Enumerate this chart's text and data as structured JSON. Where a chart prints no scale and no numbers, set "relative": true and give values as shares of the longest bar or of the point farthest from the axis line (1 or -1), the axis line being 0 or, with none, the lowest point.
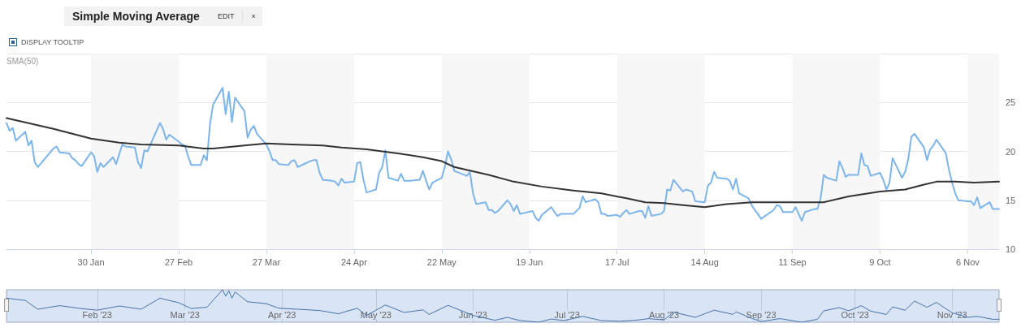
{
  "chart_data": [
    {
      "type": "line",
      "title": "Simple Moving Average",
      "annotations": [
        "EDIT",
        "×",
        "DISPLAY TOOLTIP"
      ],
      "xlim": [
        "2023-01-03",
        "2023-11-16"
      ],
      "xticks": [
        {
          "value": "2023-01-30",
          "label": "30 Jan"
        },
        {
          "value": "2023-02-27",
          "label": "27 Feb"
        },
        {
          "value": "2023-03-27",
          "label": "27 Mar"
        },
        {
          "value": "2023-04-24",
          "label": "24 Apr"
        },
        {
          "value": "2023-05-22",
          "label": "22 May"
        },
        {
          "value": "2023-06-19",
          "label": "19 Jun"
        },
        {
          "value": "2023-07-17",
          "label": "17 Jul"
        },
        {
          "value": "2023-08-14",
          "label": "14 Aug"
        },
        {
          "value": "2023-09-11",
          "label": "11 Sep"
        },
        {
          "value": "2023-10-09",
          "label": "9 Oct"
        },
        {
          "value": "2023-11-06",
          "label": "6 Nov"
        }
      ],
      "ylim": [
        10,
        30
      ],
      "yticks": [
        10,
        15,
        20,
        25,
        {
          "value": 30,
          "label": null
        }
      ],
      "grid": "y",
      "marker": "none",
      "line_style": "solid",
      "bands": [
        {
          "axis": "x",
          "from": "2023-01-30",
          "to": "2023-02-27",
          "color": "#f7f7f7"
        },
        {
          "axis": "x",
          "from": "2023-03-27",
          "to": "2023-04-24",
          "color": "#f7f7f7"
        },
        {
          "axis": "x",
          "from": "2023-05-22",
          "to": "2023-06-19",
          "color": "#f7f7f7"
        },
        {
          "axis": "x",
          "from": "2023-07-17",
          "to": "2023-08-14",
          "color": "#f7f7f7"
        },
        {
          "axis": "x",
          "from": "2023-09-11",
          "to": "2023-10-09",
          "color": "#f7f7f7"
        },
        {
          "axis": "x",
          "from": "2023-11-06",
          "to": "2023-11-16",
          "color": "#f7f7f7"
        }
      ],
      "series": [
        {
          "color": "#7cb5ec",
          "x": [
            "2023-01-03",
            "2023-01-04",
            "2023-01-05",
            "2023-01-06",
            "2023-01-09",
            "2023-01-10",
            "2023-01-11",
            "2023-01-12",
            "2023-01-13",
            "2023-01-18",
            "2023-01-19",
            "2023-01-20",
            "2023-01-23",
            "2023-01-24",
            "2023-01-25",
            "2023-01-26",
            "2023-01-27",
            "2023-01-30",
            "2023-01-31",
            "2023-02-01",
            "2023-02-02",
            "2023-02-03",
            "2023-02-06",
            "2023-02-07",
            "2023-02-08",
            "2023-02-09",
            "2023-02-10",
            "2023-02-13",
            "2023-02-14",
            "2023-02-15",
            "2023-02-16",
            "2023-02-17",
            "2023-02-21",
            "2023-02-22",
            "2023-02-23",
            "2023-02-24",
            "2023-02-27",
            "2023-02-28",
            "2023-03-01",
            "2023-03-02",
            "2023-03-03",
            "2023-03-06",
            "2023-03-07",
            "2023-03-08",
            "2023-03-09",
            "2023-03-10",
            "2023-03-13",
            "2023-03-14",
            "2023-03-15",
            "2023-03-16",
            "2023-03-17",
            "2023-03-20",
            "2023-03-21",
            "2023-03-22",
            "2023-03-23",
            "2023-03-24",
            "2023-03-27",
            "2023-03-28",
            "2023-03-29",
            "2023-03-30",
            "2023-03-31",
            "2023-04-03",
            "2023-04-04",
            "2023-04-05",
            "2023-04-06",
            "2023-04-10",
            "2023-04-11",
            "2023-04-12",
            "2023-04-13",
            "2023-04-14",
            "2023-04-17",
            "2023-04-18",
            "2023-04-19",
            "2023-04-20",
            "2023-04-21",
            "2023-04-24",
            "2023-04-25",
            "2023-04-26",
            "2023-04-27",
            "2023-04-28",
            "2023-05-01",
            "2023-05-02",
            "2023-05-03",
            "2023-05-04",
            "2023-05-05",
            "2023-05-08",
            "2023-05-09",
            "2023-05-10",
            "2023-05-11",
            "2023-05-12",
            "2023-05-15",
            "2023-05-16",
            "2023-05-17",
            "2023-05-18",
            "2023-05-19",
            "2023-05-22",
            "2023-05-23",
            "2023-05-24",
            "2023-05-25",
            "2023-05-26",
            "2023-05-30",
            "2023-05-31",
            "2023-06-01",
            "2023-06-02",
            "2023-06-05",
            "2023-06-06",
            "2023-06-07",
            "2023-06-08",
            "2023-06-09",
            "2023-06-12",
            "2023-06-13",
            "2023-06-14",
            "2023-06-15",
            "2023-06-16",
            "2023-06-20",
            "2023-06-21",
            "2023-06-22",
            "2023-06-23",
            "2023-06-26",
            "2023-06-27",
            "2023-06-28",
            "2023-06-29",
            "2023-06-30",
            "2023-07-03",
            "2023-07-05",
            "2023-07-06",
            "2023-07-07",
            "2023-07-10",
            "2023-07-11",
            "2023-07-12",
            "2023-07-13",
            "2023-07-14",
            "2023-07-17",
            "2023-07-18",
            "2023-07-19",
            "2023-07-20",
            "2023-07-21",
            "2023-07-24",
            "2023-07-25",
            "2023-07-26",
            "2023-07-27",
            "2023-07-28",
            "2023-07-31",
            "2023-08-01",
            "2023-08-02",
            "2023-08-03",
            "2023-08-04",
            "2023-08-07",
            "2023-08-08",
            "2023-08-09",
            "2023-08-10",
            "2023-08-11",
            "2023-08-14",
            "2023-08-15",
            "2023-08-16",
            "2023-08-17",
            "2023-08-18",
            "2023-08-21",
            "2023-08-22",
            "2023-08-23",
            "2023-08-24",
            "2023-08-25",
            "2023-08-28",
            "2023-08-29",
            "2023-08-30",
            "2023-08-31",
            "2023-09-01",
            "2023-09-05",
            "2023-09-06",
            "2023-09-07",
            "2023-09-08",
            "2023-09-11",
            "2023-09-12",
            "2023-09-13",
            "2023-09-14",
            "2023-09-15",
            "2023-09-18",
            "2023-09-19",
            "2023-09-20",
            "2023-09-21",
            "2023-09-22",
            "2023-09-25",
            "2023-09-26",
            "2023-09-27",
            "2023-09-28",
            "2023-09-29",
            "2023-10-02",
            "2023-10-03",
            "2023-10-04",
            "2023-10-05",
            "2023-10-06",
            "2023-10-09",
            "2023-10-10",
            "2023-10-11",
            "2023-10-12",
            "2023-10-13",
            "2023-10-16",
            "2023-10-17",
            "2023-10-18",
            "2023-10-19",
            "2023-10-20",
            "2023-10-23",
            "2023-10-24",
            "2023-10-25",
            "2023-10-26",
            "2023-10-27",
            "2023-10-30",
            "2023-10-31",
            "2023-11-01",
            "2023-11-02",
            "2023-11-03",
            "2023-11-06",
            "2023-11-07",
            "2023-11-08",
            "2023-11-09",
            "2023-11-10",
            "2023-11-13",
            "2023-11-14",
            "2023-11-15",
            "2023-11-16"
          ],
          "values": [
            22.9,
            22.1,
            22.4,
            21.1,
            22.0,
            20.6,
            21.1,
            18.9,
            18.4,
            20.3,
            20.5,
            19.9,
            19.8,
            19.3,
            19.1,
            18.7,
            18.5,
            19.9,
            19.5,
            17.9,
            18.8,
            18.4,
            19.4,
            18.7,
            19.7,
            20.7,
            20.5,
            20.4,
            18.9,
            18.3,
            20.1,
            20.0,
            22.9,
            22.3,
            21.2,
            21.7,
            21.0,
            20.7,
            20.6,
            19.5,
            18.6,
            18.6,
            19.6,
            19.1,
            22.8,
            24.8,
            26.5,
            23.8,
            26.1,
            23.0,
            25.5,
            24.1,
            21.4,
            22.2,
            22.6,
            21.8,
            20.7,
            20.0,
            19.1,
            19.1,
            18.7,
            18.6,
            19.0,
            19.1,
            18.4,
            19.0,
            19.1,
            19.1,
            17.8,
            17.1,
            17.0,
            16.9,
            16.5,
            17.2,
            16.8,
            16.9,
            18.8,
            18.9,
            17.1,
            15.8,
            16.1,
            17.8,
            18.4,
            20.1,
            17.3,
            17.0,
            17.7,
            17.0,
            17.0,
            17.0,
            17.1,
            18.0,
            17.0,
            16.1,
            16.8,
            17.3,
            18.4,
            20.0,
            19.2,
            18.0,
            17.5,
            17.9,
            15.7,
            14.6,
            14.8,
            14.0,
            14.0,
            13.7,
            13.9,
            15.0,
            14.6,
            13.9,
            14.5,
            13.6,
            13.9,
            13.2,
            12.9,
            13.5,
            14.3,
            13.8,
            13.4,
            13.6,
            13.6,
            13.6,
            14.2,
            15.4,
            14.8,
            15.1,
            14.8,
            13.6,
            13.6,
            13.4,
            13.5,
            13.3,
            13.7,
            14.0,
            13.6,
            13.9,
            13.9,
            13.2,
            14.4,
            13.4,
            13.6,
            13.9,
            16.1,
            16.0,
            17.1,
            15.9,
            16.1,
            16.0,
            15.9,
            14.9,
            14.8,
            16.5,
            16.8,
            17.9,
            17.3,
            17.2,
            17.0,
            16.1,
            17.2,
            15.7,
            15.2,
            14.5,
            14.0,
            13.6,
            13.1,
            14.0,
            14.5,
            14.4,
            13.8,
            13.8,
            14.3,
            13.6,
            12.9,
            13.8,
            14.1,
            14.1,
            15.2,
            17.6,
            17.3,
            17.0,
            19.0,
            18.3,
            17.4,
            17.6,
            17.6,
            19.8,
            18.6,
            18.5,
            17.5,
            17.8,
            17.1,
            16.1,
            16.8,
            19.3,
            17.3,
            17.9,
            19.2,
            21.5,
            21.8,
            20.4,
            19.1,
            20.2,
            20.6,
            21.2,
            19.8,
            18.1,
            16.8,
            15.7,
            15.0,
            14.9,
            14.9,
            14.5,
            15.3,
            14.2,
            14.8,
            14.1,
            14.1,
            14.1
          ]
        },
        {
          "name": "SMA(50)",
          "color": "#333333",
          "x": [
            "2023-01-03",
            "2023-01-18",
            "2023-01-30",
            "2023-02-08",
            "2023-02-15",
            "2023-02-27",
            "2023-03-07",
            "2023-03-10",
            "2023-03-20",
            "2023-03-27",
            "2023-04-04",
            "2023-04-14",
            "2023-04-20",
            "2023-04-28",
            "2023-05-08",
            "2023-05-16",
            "2023-05-22",
            "2023-05-26",
            "2023-06-06",
            "2023-06-14",
            "2023-06-23",
            "2023-07-03",
            "2023-07-12",
            "2023-07-20",
            "2023-07-26",
            "2023-08-01",
            "2023-08-07",
            "2023-08-14",
            "2023-08-21",
            "2023-08-29",
            "2023-09-07",
            "2023-09-15",
            "2023-09-21",
            "2023-09-29",
            "2023-10-09",
            "2023-10-17",
            "2023-10-23",
            "2023-10-27",
            "2023-11-02",
            "2023-11-08",
            "2023-11-16"
          ],
          "values": [
            23.4,
            22.3,
            21.3,
            20.9,
            20.7,
            20.6,
            20.3,
            20.3,
            20.6,
            20.8,
            20.7,
            20.6,
            20.4,
            20.2,
            19.8,
            19.4,
            19.0,
            18.4,
            17.6,
            16.9,
            16.4,
            16.0,
            15.7,
            15.2,
            14.8,
            14.7,
            14.5,
            14.3,
            14.6,
            14.8,
            14.8,
            14.8,
            14.8,
            15.4,
            15.9,
            16.1,
            16.6,
            16.9,
            16.9,
            16.8,
            16.9
          ]
        }
      ]
    },
    {
      "type": "line",
      "relative": true,
      "tick_labels": "x",
      "grid": "x",
      "marker": "none",
      "line_style": "solid",
      "xlim": [
        "2023-01-03",
        "2023-11-16"
      ],
      "xticks": [
        {
          "value": "2023-02-01",
          "label": "Feb '23"
        },
        {
          "value": "2023-03-01",
          "label": "Mar '23"
        },
        {
          "value": "2023-04-01",
          "label": "Apr '23"
        },
        {
          "value": "2023-05-01",
          "label": "May '23"
        },
        {
          "value": "2023-06-01",
          "label": "Jun '23"
        },
        {
          "value": "2023-07-01",
          "label": "Jul '23"
        },
        {
          "value": "2023-08-01",
          "label": "Aug '23"
        },
        {
          "value": "2023-09-01",
          "label": "Sep '23"
        },
        {
          "value": "2023-10-01",
          "label": "Oct '23"
        },
        {
          "value": "2023-11-01",
          "label": "Nov '23"
        }
      ],
      "series": [
        {
          "color": "#4572a7",
          "x": [
            "2023-01-03",
            "2023-01-09",
            "2023-01-13",
            "2023-01-20",
            "2023-01-26",
            "2023-02-01",
            "2023-02-08",
            "2023-02-15",
            "2023-02-21",
            "2023-02-27",
            "2023-03-03",
            "2023-03-08",
            "2023-03-13",
            "2023-03-14",
            "2023-03-15",
            "2023-03-16",
            "2023-03-17",
            "2023-03-21",
            "2023-03-27",
            "2023-03-31",
            "2023-04-06",
            "2023-04-13",
            "2023-04-19",
            "2023-04-25",
            "2023-04-28",
            "2023-05-04",
            "2023-05-10",
            "2023-05-16",
            "2023-05-18",
            "2023-05-24",
            "2023-06-01",
            "2023-06-08",
            "2023-06-12",
            "2023-06-16",
            "2023-06-22",
            "2023-06-26",
            "2023-06-30",
            "2023-07-06",
            "2023-07-12",
            "2023-07-18",
            "2023-07-24",
            "2023-07-27",
            "2023-08-01",
            "2023-08-04",
            "2023-08-11",
            "2023-08-17",
            "2023-08-23",
            "2023-08-24",
            "2023-08-29",
            "2023-09-01",
            "2023-09-07",
            "2023-09-14",
            "2023-09-19",
            "2023-09-21",
            "2023-09-26",
            "2023-09-29",
            "2023-10-03",
            "2023-10-06",
            "2023-10-11",
            "2023-10-13",
            "2023-10-17",
            "2023-10-20",
            "2023-10-24",
            "2023-10-27",
            "2023-11-01",
            "2023-11-06",
            "2023-11-09",
            "2023-11-14",
            "2023-11-16"
          ],
          "values": [
            0.74,
            0.67,
            0.4,
            0.51,
            0.43,
            0.37,
            0.5,
            0.4,
            0.74,
            0.6,
            0.42,
            0.46,
            1,
            0.8,
            0.97,
            0.74,
            0.93,
            0.63,
            0.57,
            0.43,
            0.4,
            0.36,
            0.26,
            0.43,
            0.21,
            0.53,
            0.3,
            0.38,
            0.24,
            0.52,
            0.21,
            0.06,
            0.15,
            0.05,
            0,
            0.1,
            0.05,
            0.18,
            0.05,
            0.03,
            0.07,
            0.11,
            0.07,
            0.31,
            0.15,
            0.37,
            0.24,
            0.32,
            0.12,
            0.02,
            0.11,
            0,
            0.09,
            0.35,
            0.45,
            0.35,
            0.51,
            0.34,
            0.24,
            0.47,
            0.37,
            0.65,
            0.46,
            0.61,
            0.29,
            0.15,
            0.18,
            0.09,
            0.09
          ]
        }
      ]
    }
  ]
}
